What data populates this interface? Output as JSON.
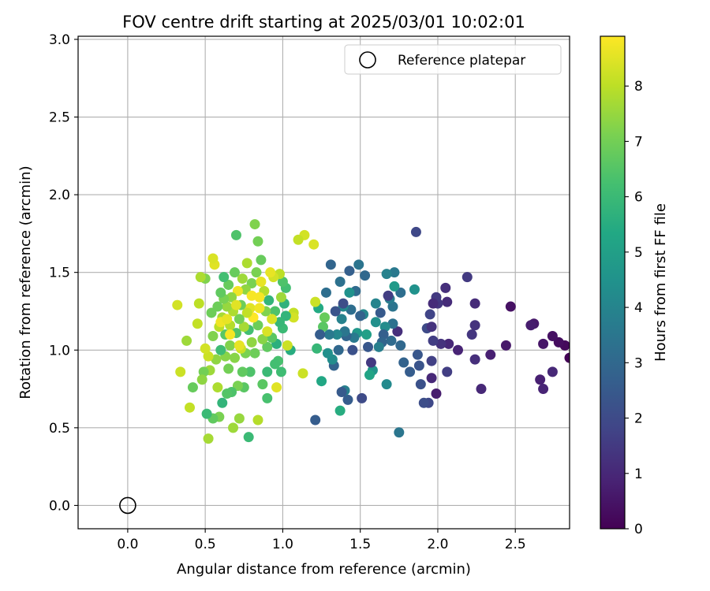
{
  "chart_data": {
    "type": "scatter",
    "title": "FOV centre drift starting at 2025/03/01 10:02:01",
    "xlabel": "Angular distance from reference (arcmin)",
    "ylabel": "Rotation from reference (arcmin)",
    "xlim": [
      -0.32,
      2.85
    ],
    "ylim": [
      -0.15,
      3.02
    ],
    "xticks": [
      0.0,
      0.5,
      1.0,
      1.5,
      2.0,
      2.5
    ],
    "xtick_labels": [
      "0.0",
      "0.5",
      "1.0",
      "1.5",
      "2.0",
      "2.5"
    ],
    "yticks": [
      0.0,
      0.5,
      1.0,
      1.5,
      2.0,
      2.5,
      3.0
    ],
    "ytick_labels": [
      "0.0",
      "0.5",
      "1.0",
      "1.5",
      "2.0",
      "2.5",
      "3.0"
    ],
    "grid": true,
    "legend": {
      "position": "top-right",
      "entries": [
        "Reference platepar"
      ]
    },
    "reference_point": {
      "x": 0.0,
      "y": 0.0,
      "label": "Reference platepar"
    },
    "colorbar": {
      "label": "Hours from first FF file",
      "range": [
        0,
        8.9
      ],
      "ticks": [
        0,
        1,
        2,
        3,
        4,
        5,
        6,
        7,
        8
      ],
      "tick_labels": [
        "0",
        "1",
        "2",
        "3",
        "4",
        "5",
        "6",
        "7",
        "8"
      ],
      "colormap": "viridis"
    },
    "points": [
      [
        2.85,
        0.95,
        0.05
      ],
      [
        2.82,
        1.03,
        0.2
      ],
      [
        2.78,
        1.05,
        0.3
      ],
      [
        2.74,
        1.09,
        0.4
      ],
      [
        2.68,
        1.04,
        0.5
      ],
      [
        2.62,
        1.17,
        0.6
      ],
      [
        2.6,
        1.16,
        0.7
      ],
      [
        2.66,
        0.81,
        0.8
      ],
      [
        2.68,
        0.75,
        0.9
      ],
      [
        2.74,
        0.86,
        1.0
      ],
      [
        2.47,
        1.28,
        0.4
      ],
      [
        2.44,
        1.03,
        0.6
      ],
      [
        2.34,
        0.97,
        0.8
      ],
      [
        2.28,
        0.75,
        1.0
      ],
      [
        2.24,
        1.3,
        1.1
      ],
      [
        2.24,
        0.94,
        1.2
      ],
      [
        2.24,
        1.16,
        1.3
      ],
      [
        2.22,
        1.1,
        1.4
      ],
      [
        2.19,
        1.47,
        1.5
      ],
      [
        2.13,
        1.0,
        0.9
      ],
      [
        2.07,
        1.04,
        1.0
      ],
      [
        2.06,
        1.31,
        1.1
      ],
      [
        2.06,
        0.86,
        1.6
      ],
      [
        2.05,
        1.4,
        1.2
      ],
      [
        2.02,
        1.04,
        1.3
      ],
      [
        2.0,
        1.3,
        1.4
      ],
      [
        1.99,
        0.72,
        0.7
      ],
      [
        1.99,
        1.34,
        1.5
      ],
      [
        1.97,
        1.06,
        1.6
      ],
      [
        1.96,
        0.93,
        1.7
      ],
      [
        1.96,
        0.82,
        1.0
      ],
      [
        1.95,
        1.23,
        1.8
      ],
      [
        1.94,
        0.66,
        1.9
      ],
      [
        1.93,
        1.14,
        2.0
      ],
      [
        1.91,
        0.66,
        2.1
      ],
      [
        1.89,
        0.78,
        2.2
      ],
      [
        1.88,
        0.9,
        2.3
      ],
      [
        1.87,
        0.97,
        2.4
      ],
      [
        1.86,
        1.76,
        1.9
      ],
      [
        1.96,
        1.15,
        1.3
      ],
      [
        1.97,
        1.3,
        1.1
      ],
      [
        1.85,
        1.39,
        4.5
      ],
      [
        1.82,
        0.86,
        2.6
      ],
      [
        1.78,
        0.92,
        2.8
      ],
      [
        1.76,
        1.03,
        3.0
      ],
      [
        1.76,
        1.37,
        3.2
      ],
      [
        1.75,
        0.47,
        3.5
      ],
      [
        1.74,
        1.12,
        1.2
      ],
      [
        1.72,
        1.5,
        3.6
      ],
      [
        1.72,
        1.41,
        4.8
      ],
      [
        1.71,
        1.17,
        3.3
      ],
      [
        1.71,
        1.28,
        3.4
      ],
      [
        1.7,
        1.06,
        3.1
      ],
      [
        1.69,
        1.33,
        3.7
      ],
      [
        1.68,
        1.35,
        1.6
      ],
      [
        1.67,
        0.78,
        4.2
      ],
      [
        1.67,
        1.49,
        3.9
      ],
      [
        1.66,
        1.15,
        4.3
      ],
      [
        1.65,
        1.1,
        2.7
      ],
      [
        1.64,
        1.05,
        2.9
      ],
      [
        1.63,
        1.24,
        2.5
      ],
      [
        1.62,
        1.02,
        3.8
      ],
      [
        1.6,
        1.3,
        4.0
      ],
      [
        1.6,
        1.18,
        4.4
      ],
      [
        1.58,
        0.87,
        4.6
      ],
      [
        1.57,
        0.92,
        1.5
      ],
      [
        1.56,
        0.84,
        5.2
      ],
      [
        1.55,
        1.02,
        2.4
      ],
      [
        1.54,
        1.1,
        5.0
      ],
      [
        1.53,
        1.48,
        3.0
      ],
      [
        1.52,
        1.23,
        4.1
      ],
      [
        1.51,
        0.69,
        2.0
      ],
      [
        1.5,
        1.22,
        2.8
      ],
      [
        1.49,
        1.55,
        3.4
      ],
      [
        1.48,
        1.11,
        4.7
      ],
      [
        1.47,
        1.38,
        3.1
      ],
      [
        1.46,
        1.08,
        3.6
      ],
      [
        1.45,
        1.0,
        2.2
      ],
      [
        1.44,
        1.26,
        3.2
      ],
      [
        1.43,
        1.37,
        4.5
      ],
      [
        1.43,
        1.51,
        2.7
      ],
      [
        1.42,
        0.68,
        2.6
      ],
      [
        1.41,
        1.09,
        2.9
      ],
      [
        1.4,
        1.12,
        3.5
      ],
      [
        1.4,
        0.74,
        3.8
      ],
      [
        1.39,
        1.28,
        4.2
      ],
      [
        1.39,
        1.3,
        2.1
      ],
      [
        1.38,
        0.73,
        2.5
      ],
      [
        1.38,
        1.2,
        3.9
      ],
      [
        1.37,
        1.44,
        3.3
      ],
      [
        1.37,
        0.61,
        5.5
      ],
      [
        1.36,
        1.0,
        3.0
      ],
      [
        1.35,
        1.1,
        4.1
      ],
      [
        1.34,
        1.25,
        2.3
      ],
      [
        1.33,
        0.9,
        2.8
      ],
      [
        1.32,
        0.94,
        4.3
      ],
      [
        1.31,
        1.55,
        2.9
      ],
      [
        1.3,
        1.1,
        3.6
      ],
      [
        1.29,
        0.98,
        4.4
      ],
      [
        1.28,
        1.37,
        3.2
      ],
      [
        1.27,
        1.21,
        6.8
      ],
      [
        1.26,
        1.15,
        6.6
      ],
      [
        1.25,
        0.8,
        5.3
      ],
      [
        1.24,
        1.1,
        2.6
      ],
      [
        1.23,
        1.27,
        5.4
      ],
      [
        1.22,
        1.01,
        5.9
      ],
      [
        1.21,
        0.55,
        2.6
      ],
      [
        1.21,
        1.31,
        8.2
      ],
      [
        1.2,
        1.68,
        8.4
      ],
      [
        1.14,
        1.74,
        8.3
      ],
      [
        1.1,
        1.71,
        8.1
      ],
      [
        1.13,
        0.85,
        8.2
      ],
      [
        1.07,
        1.24,
        8.1
      ],
      [
        1.07,
        1.21,
        8.3
      ],
      [
        1.05,
        1.0,
        5.5
      ],
      [
        1.02,
        1.22,
        5.8
      ],
      [
        1.03,
        1.03,
        8.2
      ],
      [
        1.02,
        1.4,
        6.2
      ],
      [
        1.01,
        1.3,
        5.7
      ],
      [
        1.0,
        1.44,
        6.4
      ],
      [
        1.0,
        1.14,
        6.0
      ],
      [
        0.99,
        1.34,
        7.6
      ],
      [
        0.99,
        0.86,
        6.1
      ],
      [
        0.98,
        1.49,
        8.0
      ],
      [
        0.98,
        1.18,
        5.9
      ],
      [
        0.97,
        0.93,
        6.3
      ],
      [
        0.96,
        1.04,
        5.6
      ],
      [
        0.96,
        0.76,
        8.5
      ],
      [
        0.95,
        1.25,
        6.4
      ],
      [
        0.95,
        0.91,
        6.2
      ],
      [
        0.94,
        1.47,
        8.3
      ],
      [
        0.93,
        1.08,
        6.6
      ],
      [
        0.93,
        1.2,
        8.4
      ],
      [
        0.92,
        1.5,
        8.6
      ],
      [
        0.91,
        1.32,
        5.8
      ],
      [
        0.9,
        0.86,
        6.0
      ],
      [
        0.9,
        0.69,
        6.3
      ],
      [
        0.9,
        1.02,
        6.7
      ],
      [
        0.89,
        1.25,
        7.2
      ],
      [
        0.88,
        1.38,
        7.9
      ],
      [
        0.87,
        0.78,
        6.6
      ],
      [
        0.87,
        1.07,
        7.3
      ],
      [
        0.86,
        1.58,
        6.8
      ],
      [
        0.85,
        1.34,
        8.8
      ],
      [
        0.84,
        1.16,
        6.9
      ],
      [
        0.84,
        1.7,
        7.0
      ],
      [
        0.84,
        0.55,
        7.9
      ],
      [
        0.83,
        1.5,
        7.1
      ],
      [
        0.82,
        1.81,
        7.2
      ],
      [
        0.82,
        0.98,
        6.9
      ],
      [
        0.81,
        1.21,
        8.9
      ],
      [
        0.8,
        1.43,
        7.1
      ],
      [
        0.8,
        1.05,
        7.4
      ],
      [
        0.79,
        1.27,
        8.5
      ],
      [
        0.79,
        0.86,
        6.4
      ],
      [
        0.78,
        1.13,
        6.2
      ],
      [
        0.78,
        0.44,
        6.0
      ],
      [
        0.77,
        1.56,
        7.8
      ],
      [
        0.77,
        1.24,
        8.1
      ],
      [
        0.76,
        0.98,
        7.1
      ],
      [
        0.76,
        1.39,
        7.4
      ],
      [
        0.75,
        0.76,
        6.6
      ],
      [
        0.75,
        1.15,
        7.7
      ],
      [
        0.74,
        1.46,
        7.6
      ],
      [
        0.74,
        0.86,
        6.7
      ],
      [
        0.73,
        1.29,
        6.9
      ],
      [
        0.73,
        1.01,
        8.2
      ],
      [
        0.72,
        0.56,
        7.5
      ],
      [
        0.72,
        1.2,
        7.0
      ],
      [
        0.71,
        1.38,
        8.7
      ],
      [
        0.71,
        0.77,
        7.1
      ],
      [
        0.7,
        1.11,
        6.5
      ],
      [
        0.7,
        1.74,
        6.4
      ],
      [
        0.69,
        1.5,
        6.8
      ],
      [
        0.69,
        0.95,
        7.3
      ],
      [
        0.68,
        1.25,
        7.8
      ],
      [
        0.68,
        0.5,
        7.6
      ],
      [
        0.67,
        0.73,
        6.4
      ],
      [
        0.67,
        1.34,
        7.4
      ],
      [
        0.66,
        1.03,
        7.2
      ],
      [
        0.66,
        1.16,
        7.9
      ],
      [
        0.65,
        0.88,
        7.0
      ],
      [
        0.65,
        1.42,
        6.8
      ],
      [
        0.64,
        1.28,
        7.5
      ],
      [
        0.64,
        0.72,
        6.5
      ],
      [
        0.63,
        1.1,
        6.6
      ],
      [
        0.63,
        0.96,
        7.3
      ],
      [
        0.62,
        1.33,
        7.1
      ],
      [
        0.62,
        1.47,
        6.2
      ],
      [
        0.61,
        1.21,
        7.7
      ],
      [
        0.61,
        0.66,
        5.8
      ],
      [
        0.6,
        1.0,
        6.1
      ],
      [
        0.6,
        1.37,
        6.7
      ],
      [
        0.59,
        0.57,
        7.1
      ],
      [
        0.59,
        1.15,
        8.0
      ],
      [
        0.58,
        0.76,
        7.8
      ],
      [
        0.58,
        1.28,
        6.9
      ],
      [
        0.57,
        0.94,
        7.4
      ],
      [
        0.56,
        1.55,
        8.5
      ],
      [
        0.55,
        1.09,
        7.2
      ],
      [
        0.55,
        0.56,
        6.7
      ],
      [
        0.54,
        1.24,
        6.9
      ],
      [
        0.53,
        0.87,
        7.6
      ],
      [
        0.52,
        0.43,
        7.7
      ],
      [
        0.52,
        0.96,
        8.2
      ],
      [
        0.51,
        0.59,
        6.0
      ],
      [
        0.5,
        1.46,
        7.2
      ],
      [
        0.5,
        1.01,
        8.3
      ],
      [
        0.49,
        0.86,
        7.0
      ],
      [
        0.48,
        0.81,
        7.4
      ],
      [
        0.47,
        1.47,
        7.8
      ],
      [
        0.46,
        1.3,
        8.0
      ],
      [
        0.45,
        1.17,
        8.1
      ],
      [
        0.42,
        0.76,
        6.8
      ],
      [
        0.4,
        0.63,
        8.1
      ],
      [
        0.38,
        1.06,
        7.6
      ],
      [
        0.34,
        0.86,
        8.2
      ],
      [
        0.32,
        1.29,
        8.3
      ],
      [
        0.55,
        1.59,
        8.4
      ],
      [
        0.86,
        1.44,
        8.6
      ],
      [
        0.6,
        1.18,
        8.7
      ],
      [
        0.9,
        1.12,
        8.4
      ],
      [
        0.72,
        1.03,
        8.6
      ],
      [
        0.66,
        1.1,
        8.8
      ],
      [
        0.8,
        1.35,
        8.8
      ],
      [
        0.85,
        1.27,
        8.7
      ],
      [
        0.7,
        1.29,
        8.5
      ],
      [
        0.64,
        1.2,
        8.6
      ]
    ]
  }
}
